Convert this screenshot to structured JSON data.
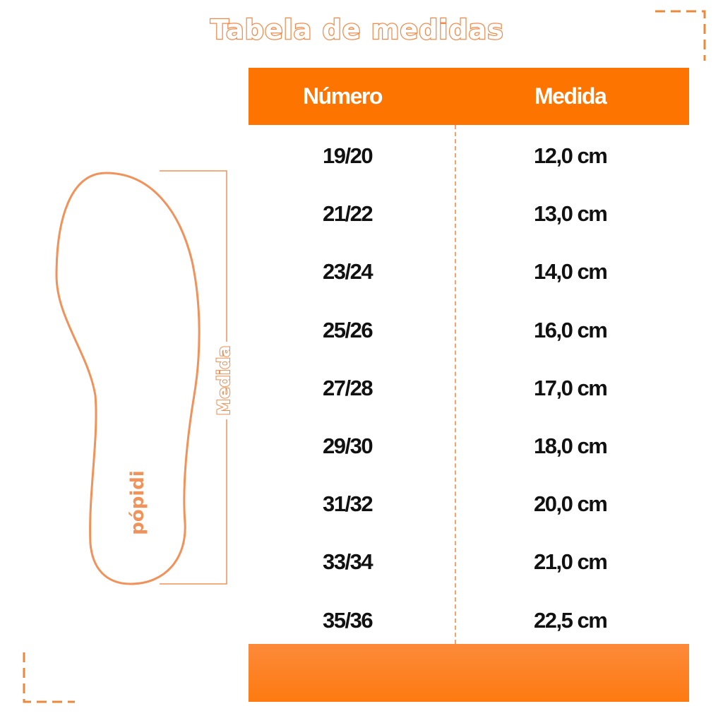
{
  "title": "Tabela de medidas",
  "table": {
    "headers": [
      "Número",
      "Medida"
    ],
    "rows": [
      {
        "size": "19/20",
        "length": "12,0 cm"
      },
      {
        "size": "21/22",
        "length": "13,0 cm"
      },
      {
        "size": "23/24",
        "length": "14,0 cm"
      },
      {
        "size": "25/26",
        "length": "16,0 cm"
      },
      {
        "size": "27/28",
        "length": "17,0 cm"
      },
      {
        "size": "29/30",
        "length": "18,0 cm"
      },
      {
        "size": "31/32",
        "length": "20,0 cm"
      },
      {
        "size": "33/34",
        "length": "21,0 cm"
      },
      {
        "size": "35/36",
        "length": "22,5 cm"
      }
    ]
  },
  "diagram": {
    "measure_label": "Medida",
    "brand": "pópidi"
  },
  "colors": {
    "accent": "#fd7400",
    "outline": "#f08a4b"
  }
}
